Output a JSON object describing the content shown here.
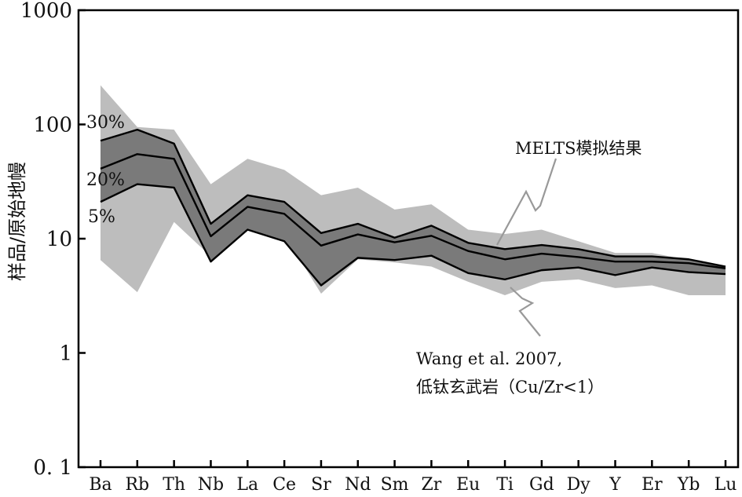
{
  "chart_data": {
    "type": "area",
    "ylabel": "样品/原始地幔",
    "yscale": "log",
    "ylim": [
      0.1,
      1000
    ],
    "yticks": [
      {
        "value": 1000,
        "label": "1000"
      },
      {
        "value": 100,
        "label": "100"
      },
      {
        "value": 10,
        "label": "10"
      },
      {
        "value": 1,
        "label": "1"
      },
      {
        "value": 0.1,
        "label": "0. 1"
      }
    ],
    "categories": [
      "Ba",
      "Rb",
      "Th",
      "Nb",
      "La",
      "Ce",
      "Sr",
      "Nd",
      "Sm",
      "Zr",
      "Eu",
      "Ti",
      "Gd",
      "Dy",
      "Y",
      "Er",
      "Yb",
      "Lu"
    ],
    "bands": [
      {
        "name": "Wang et al. 2007, 低钛玄武岩（Cu/Zr<1）",
        "color": "#bdbdbd",
        "upper": [
          220,
          95,
          90,
          30,
          50,
          40,
          24,
          28,
          18,
          20,
          12,
          11,
          12,
          9.5,
          7.5,
          7.5,
          6.5,
          5.8
        ],
        "lower": [
          6.5,
          3.4,
          14,
          7,
          12,
          11,
          3.3,
          6.6,
          6.2,
          5.7,
          4.2,
          3.2,
          4.2,
          4.4,
          3.7,
          3.9,
          3.2,
          3.2
        ]
      },
      {
        "name": "MELTS模拟结果",
        "color": "#7a7a7a",
        "upper": [
          72,
          90,
          68,
          13.5,
          24,
          21,
          11.2,
          13.5,
          10.2,
          13,
          9.2,
          8.1,
          8.8,
          8.1,
          7,
          7,
          6.6,
          5.7
        ],
        "lower": [
          21,
          30,
          28,
          6.3,
          12,
          9.5,
          3.9,
          6.8,
          6.5,
          7.1,
          5,
          4.4,
          5.3,
          5.6,
          4.8,
          5.6,
          5.1,
          4.9
        ]
      }
    ],
    "series": [
      {
        "name": "30%",
        "values": [
          72,
          90,
          68,
          13.5,
          24,
          21,
          11.2,
          13.5,
          10.2,
          13,
          9.2,
          8.1,
          8.8,
          8.1,
          7,
          7,
          6.6,
          5.7
        ]
      },
      {
        "name": "20%",
        "values": [
          41,
          55,
          50,
          10.5,
          19,
          16.5,
          8.7,
          10.9,
          9.3,
          10.6,
          7.8,
          6.6,
          7.4,
          6.9,
          6.3,
          6.3,
          6.1,
          5.5
        ]
      },
      {
        "name": "5%",
        "values": [
          21,
          30,
          28,
          6.3,
          12,
          9.5,
          3.9,
          6.8,
          6.5,
          7.1,
          5,
          4.4,
          5.3,
          5.6,
          4.8,
          5.6,
          5.1,
          4.9
        ]
      }
    ],
    "annotations": {
      "melts": "MELTS模拟结果",
      "wang_line1": "Wang et al. 2007,",
      "wang_line2": "低钛玄武岩（Cu/Zr<1）"
    },
    "grid": false,
    "legend": "none"
  }
}
